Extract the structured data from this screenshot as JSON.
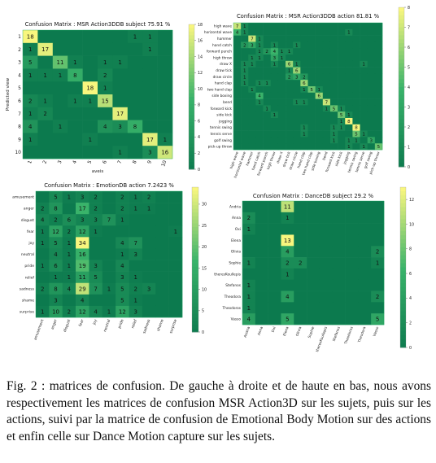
{
  "chart_data": [
    {
      "type": "heatmap",
      "title": "Confusion Matrix : MSR Action3DDB subject   75.91 %",
      "xlabel": "aveis",
      "ylabel": "Predicted view",
      "x_ticks": [
        "1",
        "2",
        "3",
        "4",
        "5",
        "6",
        "7",
        "8",
        "9",
        "10"
      ],
      "y_ticks": [
        "1",
        "2",
        "3",
        "4",
        "5",
        "6",
        "7",
        "8",
        "9",
        "10"
      ],
      "colorbar_ticks": [
        0,
        2,
        4,
        6,
        8,
        10,
        12,
        14,
        16,
        18
      ],
      "vmax": 18,
      "matrix": [
        [
          18,
          0,
          0,
          0,
          0,
          0,
          0,
          1,
          1,
          0
        ],
        [
          1,
          17,
          0,
          0,
          0,
          0,
          0,
          0,
          1,
          0
        ],
        [
          5,
          0,
          11,
          1,
          0,
          1,
          1,
          0,
          0,
          0
        ],
        [
          1,
          1,
          1,
          8,
          0,
          2,
          0,
          0,
          0,
          0
        ],
        [
          0,
          0,
          0,
          0,
          18,
          1,
          0,
          0,
          0,
          0
        ],
        [
          2,
          1,
          0,
          1,
          1,
          15,
          0,
          0,
          0,
          0
        ],
        [
          1,
          2,
          0,
          0,
          0,
          0,
          17,
          0,
          0,
          0
        ],
        [
          4,
          0,
          1,
          0,
          0,
          4,
          3,
          8,
          0,
          0
        ],
        [
          1,
          0,
          0,
          0,
          1,
          0,
          0,
          0,
          17,
          1
        ],
        [
          0,
          0,
          0,
          0,
          0,
          0,
          1,
          0,
          3,
          16
        ]
      ]
    },
    {
      "type": "heatmap",
      "title": "Confusion Matrix : MSR Action3DDB action   81.81 %",
      "x_ticks": [
        "high wave",
        "horizontal wave",
        "hammer",
        "hand catch",
        "forward punch",
        "high throw",
        "draw X",
        "draw tick",
        "draw circle",
        "hand clap",
        "two hand clap",
        "side boxing",
        "bend",
        "forward kick",
        "side kick",
        "jogging",
        "tennis swing",
        "tennis serve",
        "golf swing",
        "pick-up throw"
      ],
      "y_ticks": [
        "high wave",
        "horizontal wave",
        "hammer",
        "hand catch",
        "forward punch",
        "high throw",
        "draw X",
        "draw tick",
        "draw circle",
        "hand clap",
        "two hand clap",
        "side boxing",
        "bend",
        "forward kick",
        "side kick",
        "jogging",
        "tennis swing",
        "tennis serve",
        "golf swing",
        "pick-up throw"
      ],
      "colorbar_ticks": [
        0,
        1,
        2,
        3,
        4,
        5,
        6,
        7,
        8
      ],
      "vmax": 8,
      "matrix": [
        [
          7,
          1,
          0,
          0,
          0,
          0,
          0,
          0,
          0,
          0,
          0,
          0,
          0,
          0,
          0,
          0,
          0,
          0,
          0,
          0
        ],
        [
          4,
          1,
          0,
          0,
          0,
          0,
          0,
          0,
          0,
          0,
          0,
          0,
          0,
          0,
          0,
          1,
          0,
          0,
          0,
          0
        ],
        [
          0,
          0,
          7,
          1,
          0,
          0,
          0,
          0,
          0,
          0,
          0,
          0,
          0,
          0,
          0,
          0,
          0,
          0,
          0,
          0
        ],
        [
          0,
          2,
          3,
          1,
          0,
          1,
          0,
          0,
          1,
          0,
          0,
          0,
          0,
          0,
          0,
          0,
          0,
          0,
          0,
          0
        ],
        [
          0,
          0,
          0,
          1,
          2,
          4,
          1,
          1,
          0,
          0,
          0,
          0,
          0,
          0,
          0,
          0,
          0,
          0,
          0,
          0
        ],
        [
          0,
          0,
          1,
          1,
          0,
          3,
          1,
          0,
          0,
          0,
          0,
          0,
          0,
          0,
          0,
          0,
          0,
          0,
          0,
          0
        ],
        [
          0,
          1,
          1,
          0,
          0,
          1,
          0,
          6,
          1,
          0,
          0,
          0,
          0,
          0,
          0,
          0,
          0,
          1,
          0,
          0
        ],
        [
          0,
          1,
          0,
          0,
          0,
          0,
          0,
          1,
          6,
          0,
          0,
          0,
          0,
          0,
          0,
          0,
          0,
          0,
          0,
          0
        ],
        [
          0,
          1,
          0,
          0,
          0,
          0,
          0,
          2,
          3,
          2,
          0,
          0,
          0,
          0,
          0,
          0,
          0,
          0,
          0,
          0
        ],
        [
          0,
          1,
          0,
          1,
          1,
          0,
          0,
          0,
          0,
          6,
          0,
          0,
          0,
          0,
          0,
          0,
          0,
          0,
          0,
          0
        ],
        [
          0,
          0,
          1,
          0,
          0,
          0,
          0,
          0,
          0,
          1,
          5,
          1,
          0,
          0,
          0,
          0,
          0,
          0,
          0,
          0
        ],
        [
          0,
          0,
          0,
          4,
          0,
          0,
          0,
          0,
          0,
          0,
          0,
          6,
          0,
          0,
          0,
          0,
          0,
          0,
          0,
          0
        ],
        [
          0,
          0,
          0,
          1,
          0,
          0,
          0,
          0,
          1,
          1,
          0,
          0,
          7,
          0,
          0,
          0,
          0,
          0,
          0,
          0
        ],
        [
          0,
          0,
          0,
          0,
          1,
          0,
          0,
          0,
          0,
          0,
          0,
          0,
          1,
          5,
          1,
          0,
          0,
          0,
          0,
          0
        ],
        [
          0,
          0,
          0,
          0,
          0,
          1,
          0,
          0,
          0,
          0,
          0,
          0,
          0,
          0,
          5,
          1,
          0,
          0,
          0,
          0
        ],
        [
          0,
          0,
          0,
          0,
          0,
          0,
          0,
          0,
          0,
          0,
          0,
          0,
          0,
          0,
          1,
          8,
          0,
          0,
          0,
          0
        ],
        [
          0,
          0,
          0,
          0,
          0,
          0,
          0,
          0,
          0,
          1,
          0,
          0,
          0,
          1,
          1,
          0,
          8,
          0,
          0,
          0
        ],
        [
          0,
          0,
          0,
          0,
          0,
          0,
          0,
          0,
          0,
          1,
          0,
          0,
          0,
          1,
          0,
          0,
          5,
          1,
          0,
          0
        ],
        [
          0,
          0,
          0,
          0,
          0,
          0,
          0,
          0,
          0,
          0,
          0,
          0,
          0,
          1,
          0,
          1,
          1,
          0,
          3,
          0
        ],
        [
          0,
          0,
          0,
          0,
          0,
          0,
          0,
          0,
          0,
          0,
          0,
          0,
          0,
          0,
          0,
          1,
          0,
          1,
          0,
          5
        ]
      ]
    },
    {
      "type": "heatmap",
      "title": "Confusion Matrix : EmotionDB action   7.2423 %",
      "x_ticks": [
        "amusement",
        "anger",
        "disgust",
        "fear",
        "joy",
        "neutral",
        "pride",
        "relief",
        "sadness",
        "shame",
        "surprise"
      ],
      "y_ticks": [
        "amusement",
        "anger",
        "disgust",
        "fear",
        "joy",
        "neutral",
        "pride",
        "relief",
        "sadness",
        "shame",
        "surprise"
      ],
      "colorbar_ticks": [
        0,
        5,
        10,
        15,
        20,
        25,
        30
      ],
      "vmax": 34,
      "matrix": [
        [
          0,
          5,
          1,
          3,
          2,
          0,
          2,
          1,
          2,
          0,
          0
        ],
        [
          2,
          8,
          0,
          17,
          2,
          0,
          2,
          1,
          1,
          0,
          0
        ],
        [
          4,
          2,
          6,
          3,
          3,
          7,
          1,
          0,
          0,
          0,
          0
        ],
        [
          1,
          12,
          2,
          12,
          1,
          0,
          0,
          0,
          0,
          0,
          1
        ],
        [
          1,
          5,
          1,
          34,
          0,
          0,
          4,
          7,
          0,
          0,
          0
        ],
        [
          0,
          4,
          1,
          16,
          0,
          0,
          1,
          3,
          0,
          0,
          0
        ],
        [
          1,
          6,
          1,
          19,
          3,
          0,
          4,
          0,
          0,
          0,
          0
        ],
        [
          0,
          1,
          1,
          11,
          5,
          0,
          3,
          1,
          0,
          0,
          0
        ],
        [
          2,
          8,
          4,
          29,
          7,
          1,
          5,
          2,
          3,
          0,
          0
        ],
        [
          0,
          3,
          0,
          4,
          0,
          0,
          5,
          1,
          0,
          0,
          0
        ],
        [
          1,
          10,
          2,
          12,
          4,
          1,
          12,
          3,
          0,
          0,
          0
        ]
      ]
    },
    {
      "type": "heatmap",
      "title": "Confusion Matrix : DanceDB subject   29.2 %",
      "x_ticks": [
        "Andria",
        "Anna",
        "Dxi",
        "Elena",
        "Olivia",
        "Sophie",
        "theresKoullepis",
        "Stefanos",
        "Theodoros",
        "Theodora",
        "Vasso"
      ],
      "y_ticks": [
        "Andria",
        "Anna",
        "Oxi",
        "Elena",
        "Olivia",
        "Sophie",
        "theresKoullepis",
        "Stefanos",
        "Theodora",
        "Theodoros",
        "Vasso"
      ],
      "colorbar_ticks": [
        0,
        2,
        4,
        6,
        8,
        10,
        12
      ],
      "vmax": 13,
      "matrix": [
        [
          0,
          0,
          0,
          11,
          0,
          0,
          0,
          0,
          0,
          0,
          0
        ],
        [
          2,
          0,
          0,
          1,
          0,
          0,
          0,
          0,
          0,
          0,
          0
        ],
        [
          1,
          0,
          0,
          0,
          0,
          0,
          0,
          0,
          0,
          0,
          0
        ],
        [
          0,
          0,
          0,
          13,
          0,
          0,
          0,
          0,
          0,
          0,
          0
        ],
        [
          0,
          0,
          0,
          4,
          0,
          0,
          0,
          0,
          0,
          0,
          2
        ],
        [
          1,
          0,
          0,
          2,
          2,
          0,
          0,
          0,
          0,
          0,
          1
        ],
        [
          0,
          0,
          0,
          1,
          0,
          0,
          0,
          0,
          0,
          0,
          0
        ],
        [
          1,
          0,
          0,
          0,
          0,
          0,
          0,
          0,
          0,
          0,
          0
        ],
        [
          1,
          0,
          0,
          4,
          0,
          0,
          0,
          0,
          0,
          0,
          2
        ],
        [
          1,
          0,
          0,
          0,
          0,
          0,
          0,
          0,
          0,
          0,
          0
        ],
        [
          4,
          0,
          0,
          5,
          0,
          0,
          0,
          0,
          0,
          0,
          5
        ]
      ]
    }
  ],
  "caption": "Fig. 2 : matrices de confusion. De gauche à droite et de haute en bas, nous avons respectivement les matrices de confusion MSR Action3D sur les sujets, puis sur les actions, suivi par la matrice de confusion de Emotional Body Motion sur des actions et enfin celle sur Dance Motion capture sur les sujets.",
  "colors": {
    "low": "#0c7a4e",
    "mid": "#39b36a",
    "high": "#f8f67e",
    "cell_text": "#111111",
    "tick_text": "#222222"
  }
}
